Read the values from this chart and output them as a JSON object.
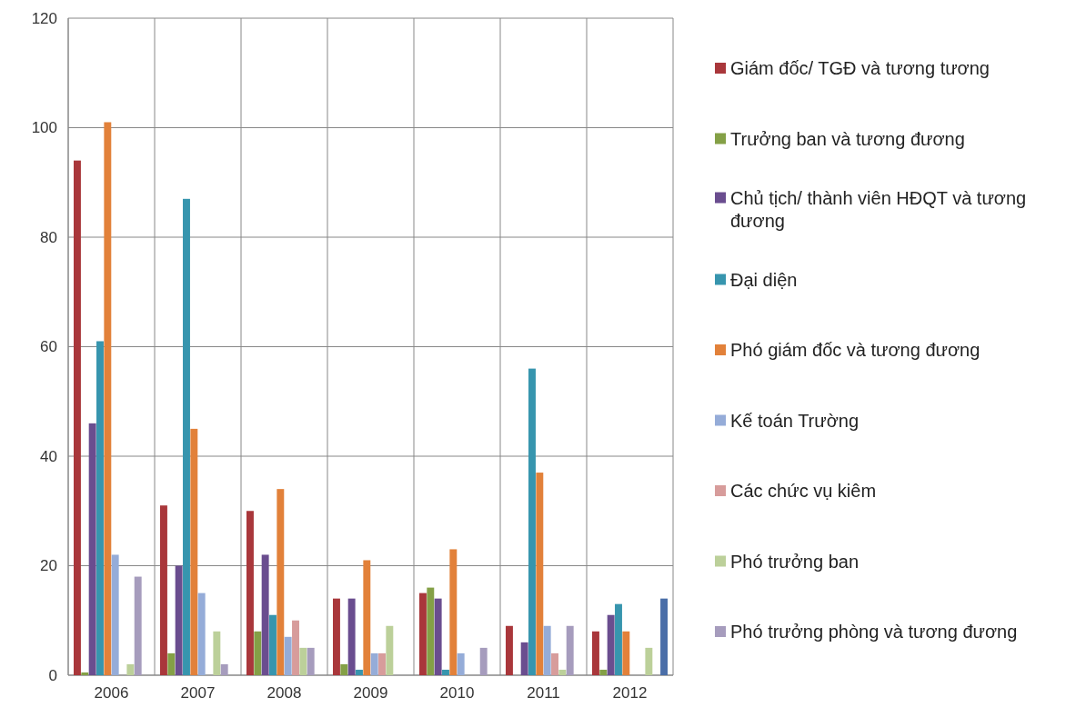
{
  "chart_data": {
    "type": "bar",
    "categories": [
      "2006",
      "2007",
      "2008",
      "2009",
      "2010",
      "2011",
      "2012"
    ],
    "series": [
      {
        "name": "Giám đốc/ TGĐ và tương tương",
        "color": "#a9373b",
        "values": [
          94,
          31,
          30,
          14,
          15,
          9,
          8
        ]
      },
      {
        "name": "Trưởng ban và tương đương",
        "color": "#84a046",
        "values": [
          0.5,
          4,
          8,
          2,
          16,
          0,
          1
        ]
      },
      {
        "name": "Chủ tịch/ thành viên HĐQT và tương đương",
        "color": "#6a4d8f",
        "values": [
          46,
          20,
          22,
          14,
          14,
          6,
          11
        ]
      },
      {
        "name": "Đại diện",
        "color": "#3795ae",
        "values": [
          61,
          87,
          11,
          1,
          1,
          56,
          13
        ]
      },
      {
        "name": "Phó giám đốc và tương đương",
        "color": "#e2813a",
        "values": [
          101,
          45,
          34,
          21,
          23,
          37,
          8
        ]
      },
      {
        "name": "Kế toán Trường",
        "color": "#95acd8",
        "values": [
          22,
          15,
          7,
          4,
          4,
          9,
          0
        ]
      },
      {
        "name": "Các chức vụ kiêm",
        "color": "#d79c9b",
        "values": [
          0,
          0,
          10,
          4,
          0,
          4,
          0
        ]
      },
      {
        "name": "Phó trưởng ban",
        "color": "#bcd09a",
        "values": [
          2,
          8,
          5,
          9,
          0,
          1,
          5
        ]
      },
      {
        "name": "Phó trưởng phòng và tương đương",
        "color": "#a69cbd",
        "values": [
          18,
          2,
          5,
          0,
          5,
          9,
          0
        ]
      },
      {
        "color": "#4a6ea8",
        "values": [
          0,
          0,
          0,
          0,
          0,
          0,
          14
        ]
      }
    ],
    "ylim": [
      0,
      120
    ],
    "yticks": [
      0,
      20,
      40,
      60,
      80,
      100,
      120
    ],
    "grid": true,
    "legend": "right"
  }
}
